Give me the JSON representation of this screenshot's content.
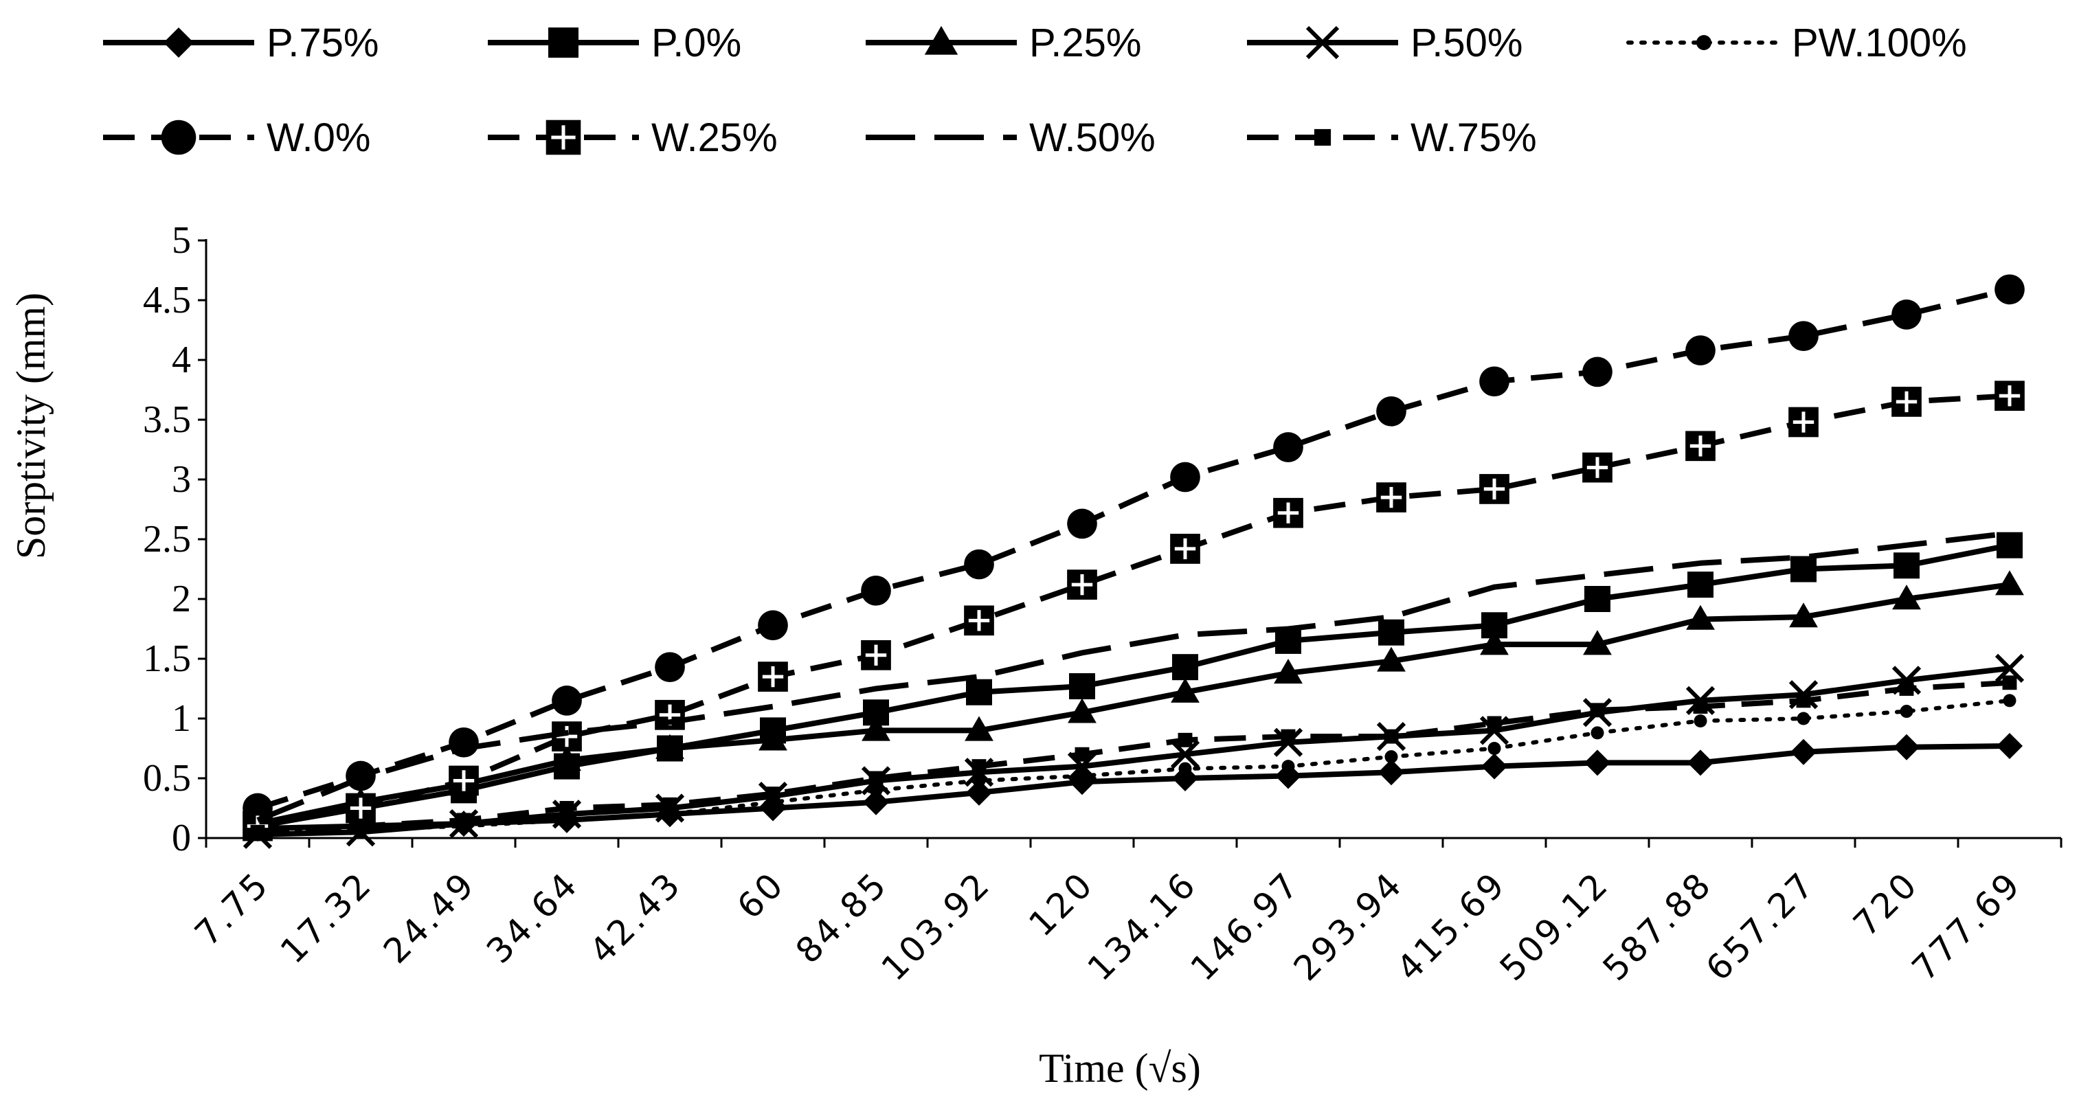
{
  "chart_data": {
    "type": "line",
    "title": "",
    "xlabel": "Time (√s)",
    "ylabel": "Sorptivity (mm)",
    "ylim": [
      0,
      5
    ],
    "yticks": [
      "0",
      "0.5",
      "1",
      "1.5",
      "2",
      "2.5",
      "3",
      "3.5",
      "4",
      "4.5",
      "5"
    ],
    "categories": [
      "7.75",
      "17.32",
      "24.49",
      "34.64",
      "42.43",
      "60",
      "84.85",
      "103.92",
      "120",
      "134.16",
      "146.97",
      "293.94",
      "415.69",
      "509.12",
      "587.88",
      "657.27",
      "720",
      "777.69"
    ],
    "legend_position": "top",
    "series": [
      {
        "name": "P.75%",
        "line": "solid",
        "marker": "diamond",
        "values": [
          0.08,
          0.1,
          0.12,
          0.15,
          0.2,
          0.25,
          0.3,
          0.38,
          0.47,
          0.5,
          0.52,
          0.55,
          0.6,
          0.63,
          0.63,
          0.72,
          0.76,
          0.77
        ]
      },
      {
        "name": "P.0%",
        "line": "solid",
        "marker": "square",
        "values": [
          0.1,
          0.25,
          0.4,
          0.6,
          0.75,
          0.9,
          1.05,
          1.22,
          1.27,
          1.43,
          1.65,
          1.72,
          1.78,
          2.0,
          2.12,
          2.25,
          2.28,
          2.45
        ]
      },
      {
        "name": "P.25%",
        "line": "solid",
        "marker": "triangle",
        "values": [
          0.12,
          0.3,
          0.45,
          0.65,
          0.75,
          0.82,
          0.9,
          0.9,
          1.05,
          1.22,
          1.38,
          1.48,
          1.62,
          1.62,
          1.83,
          1.85,
          2.0,
          2.12
        ]
      },
      {
        "name": "P.50%",
        "line": "solid",
        "marker": "x",
        "values": [
          0.03,
          0.05,
          0.12,
          0.2,
          0.25,
          0.35,
          0.48,
          0.55,
          0.6,
          0.7,
          0.8,
          0.85,
          0.9,
          1.05,
          1.15,
          1.2,
          1.32,
          1.42
        ]
      },
      {
        "name": "PW.100%",
        "line": "dotted",
        "marker": "smalldot",
        "values": [
          0.05,
          0.07,
          0.1,
          0.15,
          0.2,
          0.3,
          0.4,
          0.48,
          0.52,
          0.58,
          0.6,
          0.68,
          0.75,
          0.88,
          0.98,
          1.0,
          1.06,
          1.15
        ]
      },
      {
        "name": "W.0%",
        "line": "dashed",
        "marker": "circle",
        "values": [
          0.25,
          0.52,
          0.8,
          1.15,
          1.43,
          1.78,
          2.07,
          2.29,
          2.63,
          3.02,
          3.27,
          3.57,
          3.82,
          3.9,
          4.08,
          4.2,
          4.38,
          4.59
        ]
      },
      {
        "name": "W.25%",
        "line": "dashed",
        "marker": "squareplus",
        "values": [
          0.1,
          0.25,
          0.48,
          0.85,
          1.03,
          1.35,
          1.53,
          1.82,
          2.12,
          2.42,
          2.72,
          2.85,
          2.92,
          3.1,
          3.28,
          3.48,
          3.65,
          3.7
        ]
      },
      {
        "name": "W.50%",
        "line": "longdash",
        "marker": "none",
        "values": [
          0.15,
          0.5,
          0.75,
          0.88,
          0.97,
          1.1,
          1.25,
          1.35,
          1.55,
          1.7,
          1.75,
          1.85,
          2.1,
          2.2,
          2.3,
          2.35,
          2.45,
          2.55
        ]
      },
      {
        "name": "W.75%",
        "line": "dashed",
        "marker": "smallsquare",
        "values": [
          0.05,
          0.1,
          0.15,
          0.25,
          0.28,
          0.37,
          0.5,
          0.6,
          0.7,
          0.82,
          0.85,
          0.85,
          0.96,
          1.07,
          1.1,
          1.15,
          1.25,
          1.3
        ]
      }
    ]
  }
}
